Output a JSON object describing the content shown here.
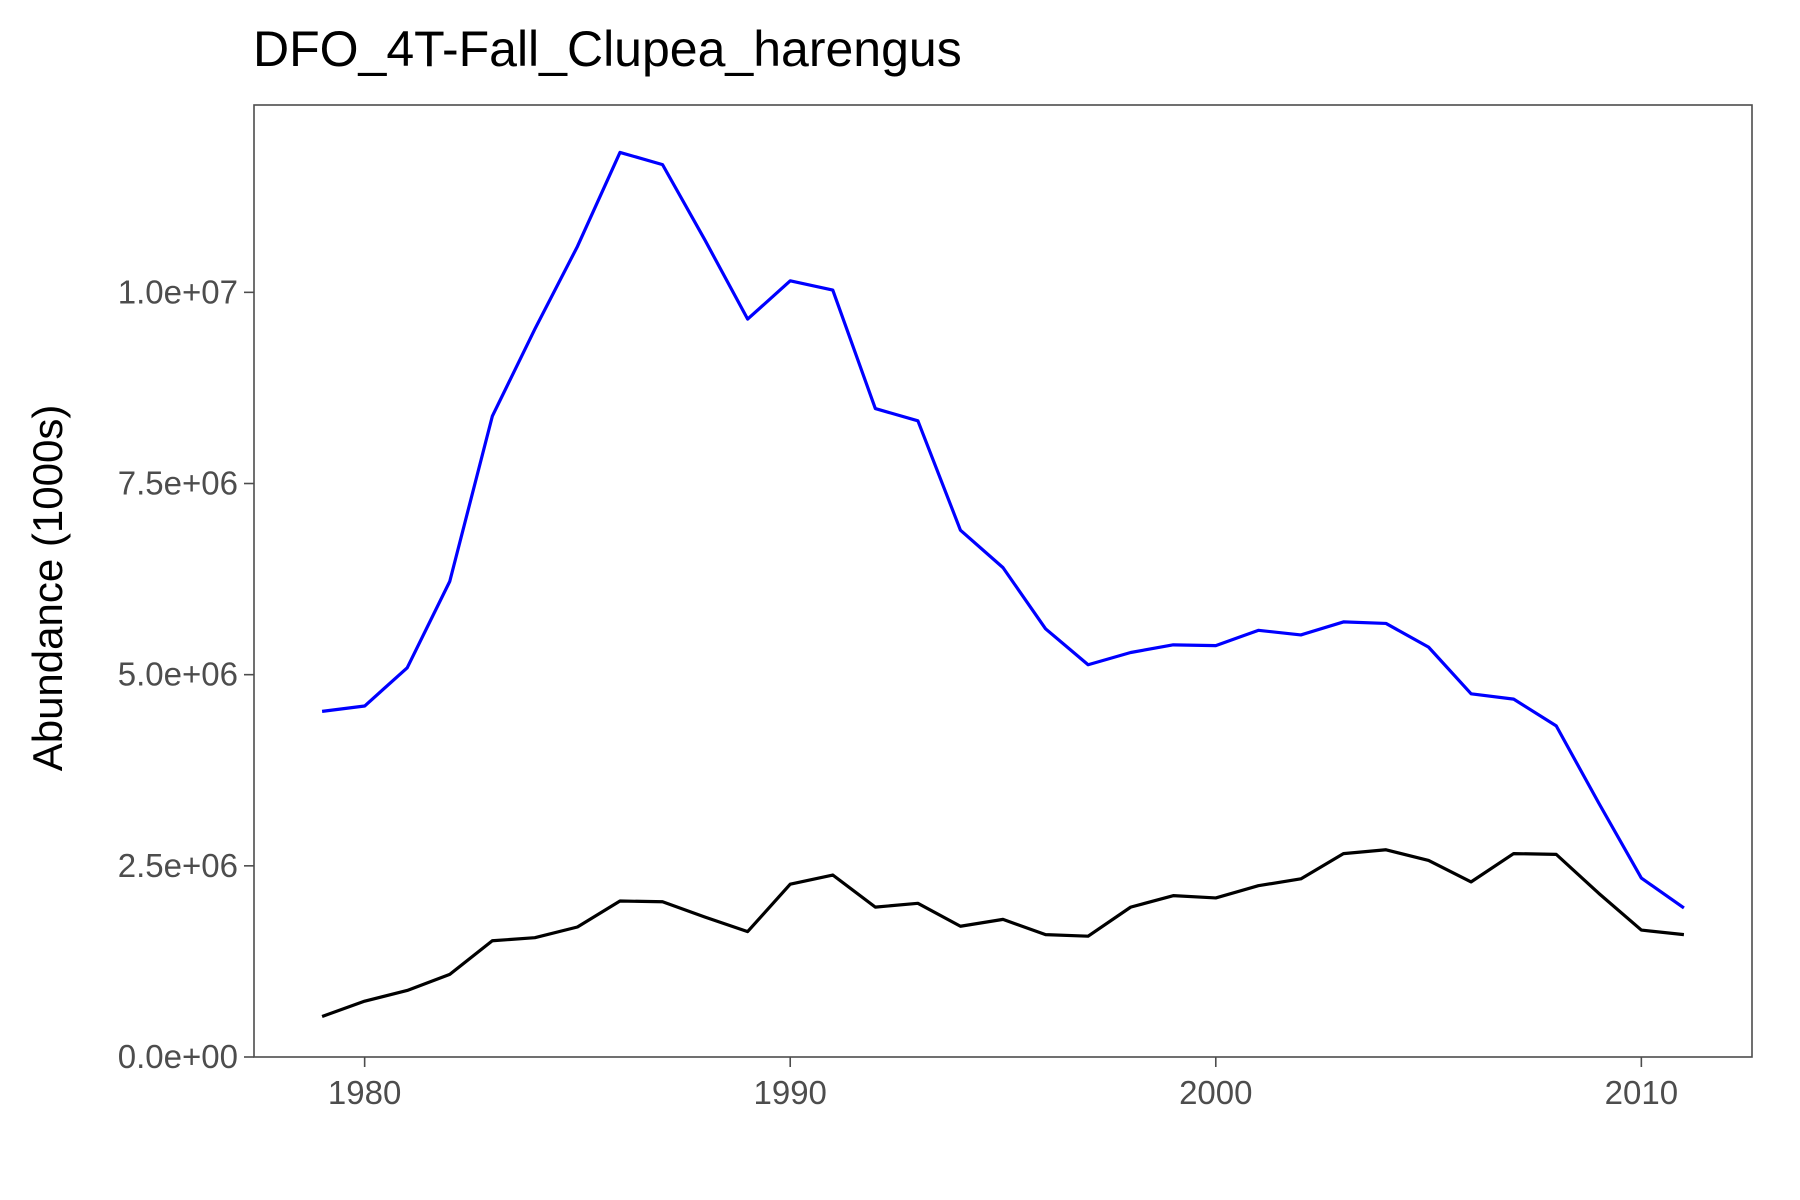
{
  "chart_data": {
    "type": "line",
    "title": "DFO_4T-Fall_Clupea_harengus",
    "xlabel": "",
    "ylabel": "Abundance (1000s)",
    "xlim": [
      1977.4,
      2012.6
    ],
    "ylim": [
      0,
      12450000
    ],
    "x_ticks": [
      1980,
      1990,
      2000,
      2010
    ],
    "x_tick_labels": [
      "1980",
      "1990",
      "2000",
      "2010"
    ],
    "y_ticks": [
      0,
      2500000,
      5000000,
      7500000,
      10000000
    ],
    "y_tick_labels": [
      "0.0e+00",
      "2.5e+06",
      "5.0e+06",
      "7.5e+06",
      "1.0e+07"
    ],
    "grid": false,
    "legend": "none",
    "x": [
      1979,
      1980,
      1981,
      1982,
      1983,
      1984,
      1985,
      1986,
      1987,
      1988,
      1989,
      1990,
      1991,
      1992,
      1993,
      1994,
      1995,
      1996,
      1997,
      1998,
      1999,
      2000,
      2001,
      2002,
      2003,
      2004,
      2005,
      2006,
      2007,
      2008,
      2009,
      2010,
      2011
    ],
    "series": [
      {
        "color": "#0000ff",
        "values": [
          4520000,
          4590000,
          5090000,
          6220000,
          8380000,
          9520000,
          10600000,
          11830000,
          11670000,
          10680000,
          9650000,
          10150000,
          10030000,
          8480000,
          8320000,
          6890000,
          6400000,
          5600000,
          5130000,
          5290000,
          5390000,
          5380000,
          5580000,
          5520000,
          5690000,
          5670000,
          5360000,
          4750000,
          4680000,
          4330000,
          3320000,
          2340000,
          1950000
        ]
      },
      {
        "color": "#000000",
        "values": [
          530000,
          730000,
          870000,
          1080000,
          1520000,
          1560000,
          1700000,
          2040000,
          2030000,
          1830000,
          1640000,
          2260000,
          2380000,
          1960000,
          2010000,
          1710000,
          1800000,
          1600000,
          1580000,
          1960000,
          2110000,
          2080000,
          2240000,
          2330000,
          2660000,
          2710000,
          2570000,
          2290000,
          2660000,
          2650000,
          2140000,
          1660000,
          1600000
        ]
      }
    ]
  }
}
